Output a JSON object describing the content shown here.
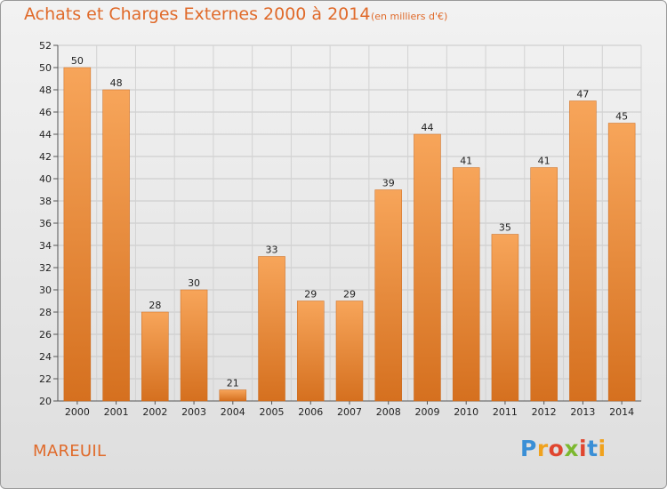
{
  "chart_data": {
    "type": "bar",
    "title": "Achats et Charges Externes 2000 à 2014",
    "subtitle": "(en milliers d'€)",
    "categories": [
      "2000",
      "2001",
      "2002",
      "2003",
      "2004",
      "2005",
      "2006",
      "2007",
      "2008",
      "2009",
      "2010",
      "2011",
      "2012",
      "2013",
      "2014"
    ],
    "values": [
      50,
      48,
      28,
      30,
      21,
      33,
      29,
      29,
      39,
      44,
      41,
      35,
      41,
      47,
      45
    ],
    "ylim": [
      20,
      52
    ],
    "yticks": [
      20,
      22,
      24,
      26,
      28,
      30,
      32,
      34,
      36,
      38,
      40,
      42,
      44,
      46,
      48,
      50,
      52
    ],
    "xlabel": "",
    "ylabel": "",
    "grid": true,
    "bar_color_top": "#f7a55a",
    "bar_color_bottom": "#d5701f"
  },
  "commune": "MAREUIL",
  "logo": {
    "letters": [
      "P",
      "r",
      "o",
      "x",
      "i",
      "t",
      "i"
    ],
    "colors": [
      "#3a8fd6",
      "#f0a21e",
      "#e0462f",
      "#7cb82f",
      "#e0462f",
      "#3a8fd6",
      "#f0a21e"
    ]
  }
}
